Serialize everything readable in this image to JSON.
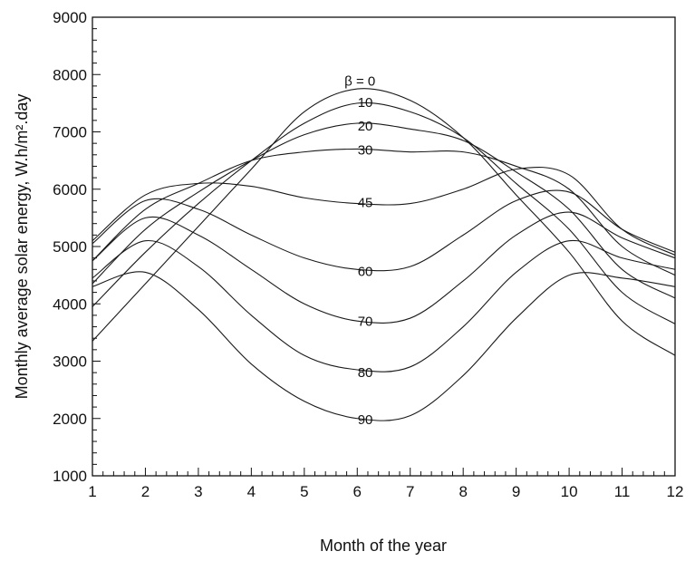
{
  "chart_data": {
    "type": "line",
    "title": "",
    "xlabel": "Month of the year",
    "ylabel": "Monthly average solar energy, W.h/m².day",
    "xlim": [
      1,
      12
    ],
    "ylim": [
      1000,
      9000
    ],
    "x_ticks": [
      1,
      2,
      3,
      4,
      5,
      6,
      7,
      8,
      9,
      10,
      11,
      12
    ],
    "y_ticks": [
      1000,
      2000,
      3000,
      4000,
      5000,
      6000,
      7000,
      8000,
      9000
    ],
    "x_tick_labels": [
      "1",
      "2",
      "3",
      "4",
      "5",
      "6",
      "7",
      "8",
      "9",
      "10",
      "11",
      "12"
    ],
    "y_tick_labels": [
      "1000",
      "2000",
      "3000",
      "4000",
      "5000",
      "6000",
      "7000",
      "8000",
      "9000"
    ],
    "grid": false,
    "legend": "none",
    "x": [
      1,
      2,
      3,
      4,
      5,
      6,
      7,
      8,
      9,
      10,
      11,
      12
    ],
    "series": [
      {
        "name": "β = 0",
        "label_x": 6.05,
        "label_y": 7900,
        "values": [
          3350,
          4350,
          5350,
          6350,
          7350,
          7750,
          7550,
          6900,
          5900,
          4900,
          3700,
          3100
        ]
      },
      {
        "name": "10",
        "label_x": 6.15,
        "label_y": 7530,
        "values": [
          3950,
          4900,
          5750,
          6500,
          7150,
          7500,
          7350,
          6900,
          6100,
          5300,
          4200,
          3650
        ]
      },
      {
        "name": "20",
        "label_x": 6.15,
        "label_y": 7120,
        "values": [
          4350,
          5300,
          5950,
          6500,
          6950,
          7150,
          7050,
          6850,
          6300,
          5650,
          4600,
          4100
        ]
      },
      {
        "name": "30",
        "label_x": 6.15,
        "label_y": 6700,
        "values": [
          4750,
          5650,
          6100,
          6500,
          6650,
          6700,
          6650,
          6650,
          6400,
          6000,
          5000,
          4500
        ]
      },
      {
        "name": "45",
        "label_x": 6.15,
        "label_y": 5780,
        "values": [
          5100,
          5900,
          6100,
          6050,
          5850,
          5750,
          5750,
          6000,
          6350,
          6250,
          5300,
          4850
        ]
      },
      {
        "name": "60",
        "label_x": 6.15,
        "label_y": 4580,
        "values": [
          5050,
          5800,
          5650,
          5200,
          4800,
          4600,
          4650,
          5200,
          5800,
          5950,
          5300,
          4900
        ]
      },
      {
        "name": "70",
        "label_x": 6.15,
        "label_y": 3710,
        "values": [
          4750,
          5500,
          5200,
          4600,
          4000,
          3700,
          3750,
          4400,
          5200,
          5600,
          5150,
          4800
        ]
      },
      {
        "name": "80",
        "label_x": 6.15,
        "label_y": 2820,
        "values": [
          4450,
          5100,
          4650,
          3800,
          3100,
          2850,
          2900,
          3600,
          4550,
          5100,
          4800,
          4600
        ]
      },
      {
        "name": "90",
        "label_x": 6.15,
        "label_y": 2000,
        "values": [
          4300,
          4550,
          3900,
          2950,
          2300,
          2000,
          2050,
          2750,
          3750,
          4500,
          4450,
          4300
        ]
      }
    ]
  }
}
